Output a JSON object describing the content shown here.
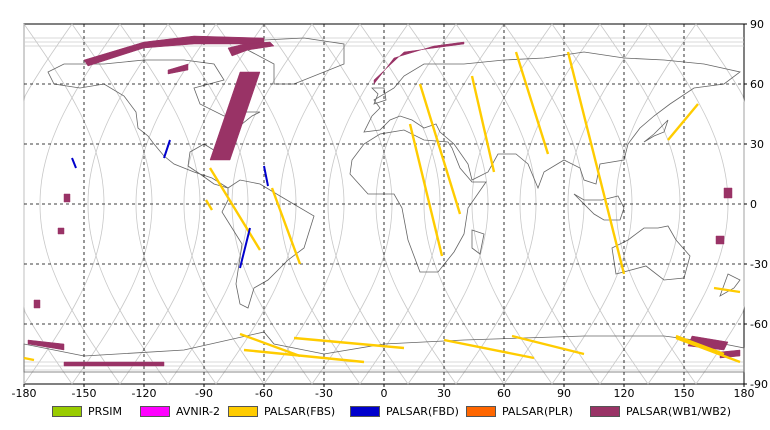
{
  "map": {
    "lon_ticks": [
      "-180",
      "-150",
      "-120",
      "-90",
      "-60",
      "-30",
      "0",
      "30",
      "60",
      "90",
      "120",
      "150",
      "180"
    ],
    "lat_ticks": [
      "90",
      "60",
      "30",
      "0",
      "-30",
      "-60",
      "-90"
    ],
    "lon_values": [
      -180,
      -150,
      -120,
      -90,
      -60,
      -30,
      0,
      30,
      60,
      90,
      120,
      150,
      180
    ],
    "lat_values": [
      90,
      60,
      30,
      0,
      -30,
      -60,
      -90
    ],
    "extent": {
      "lon": [
        -180,
        180
      ],
      "lat": [
        -90,
        90
      ]
    },
    "grid": "dashed"
  },
  "legend": [
    {
      "label": "PRSIM",
      "color": "#99cc00"
    },
    {
      "label": "AVNIR-2",
      "color": "#ff00ff"
    },
    {
      "label": "PALSAR(FBS)",
      "color": "#ffcc00"
    },
    {
      "label": "PALSAR(FBD)",
      "color": "#0000cc"
    },
    {
      "label": "PALSAR(PLR)",
      "color": "#ff6600"
    },
    {
      "label": "PALSAR(WB1/WB2)",
      "color": "#993366"
    }
  ],
  "swaths": {
    "wb": [
      {
        "lon": [
          -150,
          -120,
          -95,
          -60,
          -60,
          -95,
          -120,
          -148
        ],
        "lat": [
          72,
          81,
          84,
          83,
          80,
          80,
          78,
          69
        ]
      },
      {
        "lon": [
          -108,
          -98,
          -98,
          -108
        ],
        "lat": [
          67,
          70,
          67,
          65
        ]
      },
      {
        "lon": [
          -78,
          -70,
          -57,
          -55,
          -68,
          -76
        ],
        "lat": [
          78,
          80,
          81,
          79,
          77,
          74
        ]
      },
      {
        "lon": [
          -72,
          -62,
          -77,
          -87
        ],
        "lat": [
          66,
          66,
          22,
          22
        ]
      },
      {
        "lon": [
          -5,
          5,
          25,
          40,
          40,
          10,
          -5
        ],
        "lat": [
          60,
          73,
          79,
          81,
          80,
          76,
          62
        ]
      },
      {
        "lon": [
          -160,
          -157,
          -157,
          -160
        ],
        "lat": [
          5,
          5,
          1,
          1
        ]
      },
      {
        "lon": [
          -163,
          -160,
          -160,
          -163
        ],
        "lat": [
          -12,
          -12,
          -15,
          -15
        ]
      },
      {
        "lon": [
          -175,
          -172,
          -172,
          -175
        ],
        "lat": [
          -48,
          -48,
          -52,
          -52
        ]
      },
      {
        "lon": [
          -178,
          -160,
          -160,
          -178
        ],
        "lat": [
          -68,
          -70,
          -73,
          -70
        ]
      },
      {
        "lon": [
          -160,
          -110,
          -110,
          -160
        ],
        "lat": [
          -79,
          -79,
          -81,
          -81
        ]
      },
      {
        "lon": [
          154,
          172,
          170,
          152
        ],
        "lat": [
          -66,
          -69,
          -73,
          -71
        ]
      },
      {
        "lon": [
          168,
          178,
          178,
          168
        ],
        "lat": [
          -74,
          -73,
          -76,
          -77
        ]
      },
      {
        "lon": [
          170,
          174,
          174,
          170
        ],
        "lat": [
          8,
          8,
          3,
          3
        ]
      },
      {
        "lon": [
          166,
          170,
          170,
          166
        ],
        "lat": [
          -16,
          -16,
          -20,
          -20
        ]
      }
    ],
    "fbs": [
      {
        "lon": [
          66,
          82
        ],
        "lat": [
          76,
          25
        ]
      },
      {
        "lon": [
          92,
          120
        ],
        "lat": [
          76,
          -35
        ]
      },
      {
        "lon": [
          44,
          55
        ],
        "lat": [
          64,
          16
        ]
      },
      {
        "lon": [
          18,
          38
        ],
        "lat": [
          60,
          -5
        ]
      },
      {
        "lon": [
          13,
          29
        ],
        "lat": [
          40,
          -26
        ]
      },
      {
        "lon": [
          157,
          142
        ],
        "lat": [
          50,
          32
        ]
      },
      {
        "lon": [
          -87,
          -62
        ],
        "lat": [
          18,
          -23
        ]
      },
      {
        "lon": [
          -56,
          -42
        ],
        "lat": [
          8,
          -30
        ]
      },
      {
        "lon": [
          -86,
          -89
        ],
        "lat": [
          -3,
          2
        ]
      },
      {
        "lon": [
          -72,
          -42
        ],
        "lat": [
          -65,
          -76
        ]
      },
      {
        "lon": [
          -70,
          -10
        ],
        "lat": [
          -73,
          -79
        ]
      },
      {
        "lon": [
          -45,
          10
        ],
        "lat": [
          -67,
          -72
        ]
      },
      {
        "lon": [
          30,
          75
        ],
        "lat": [
          -68,
          -77
        ]
      },
      {
        "lon": [
          64,
          100
        ],
        "lat": [
          -66,
          -75
        ]
      },
      {
        "lon": [
          146,
          178
        ],
        "lat": [
          -67,
          -79
        ]
      },
      {
        "lon": [
          146,
          170
        ],
        "lat": [
          -66,
          -75
        ]
      },
      {
        "lon": [
          -180,
          -175
        ],
        "lat": [
          -77,
          -78
        ]
      },
      {
        "lon": [
          165,
          178
        ],
        "lat": [
          -42,
          -44
        ]
      }
    ],
    "fbd": [
      {
        "lon": [
          -156,
          -154
        ],
        "lat": [
          23,
          18
        ]
      },
      {
        "lon": [
          -107,
          -110
        ],
        "lat": [
          32,
          23
        ]
      },
      {
        "lon": [
          -60,
          -58
        ],
        "lat": [
          19,
          9
        ]
      },
      {
        "lon": [
          -67,
          -72
        ],
        "lat": [
          -12,
          -32
        ]
      }
    ]
  }
}
